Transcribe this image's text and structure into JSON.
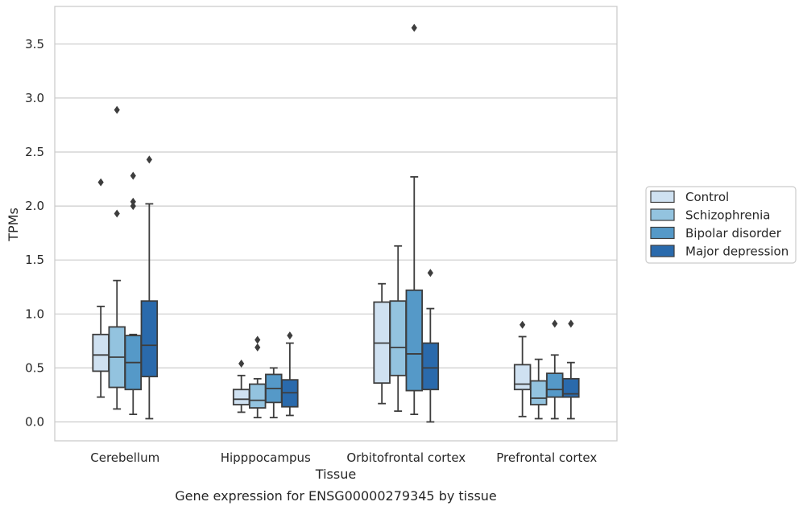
{
  "chart_data": {
    "type": "box",
    "caption": "Gene expression for ENSG00000279345 by tissue",
    "xlabel": "Tissue",
    "ylabel": "TPMs",
    "ylim": [
      -0.18,
      3.85
    ],
    "yticks": [
      "0.0",
      "0.5",
      "1.0",
      "1.5",
      "2.0",
      "2.5",
      "3.0",
      "3.5"
    ],
    "grid": "horizontal",
    "legend_position": "right",
    "categories": [
      "Cerebellum",
      "Hipppocampus",
      "Orbitofrontal cortex",
      "Prefrontal cortex"
    ],
    "series": [
      {
        "name": "Control",
        "color": "#cfe1f1",
        "boxes": [
          {
            "whislo": 0.23,
            "q1": 0.47,
            "med": 0.62,
            "q3": 0.81,
            "whishi": 1.07,
            "fliers": [
              2.22
            ]
          },
          {
            "whislo": 0.09,
            "q1": 0.16,
            "med": 0.21,
            "q3": 0.3,
            "whishi": 0.43,
            "fliers": [
              0.54
            ]
          },
          {
            "whislo": 0.17,
            "q1": 0.36,
            "med": 0.73,
            "q3": 1.11,
            "whishi": 1.28,
            "fliers": []
          },
          {
            "whislo": 0.05,
            "q1": 0.3,
            "med": 0.35,
            "q3": 0.53,
            "whishi": 0.79,
            "fliers": [
              0.9
            ]
          }
        ]
      },
      {
        "name": "Schizophrenia",
        "color": "#93c3df",
        "boxes": [
          {
            "whislo": 0.12,
            "q1": 0.32,
            "med": 0.6,
            "q3": 0.88,
            "whishi": 1.31,
            "fliers": [
              1.93,
              2.89
            ]
          },
          {
            "whislo": 0.04,
            "q1": 0.13,
            "med": 0.2,
            "q3": 0.35,
            "whishi": 0.4,
            "fliers": [
              0.69,
              0.76
            ]
          },
          {
            "whislo": 0.1,
            "q1": 0.43,
            "med": 0.69,
            "q3": 1.12,
            "whishi": 1.63,
            "fliers": []
          },
          {
            "whislo": 0.03,
            "q1": 0.16,
            "med": 0.22,
            "q3": 0.38,
            "whishi": 0.58,
            "fliers": []
          }
        ]
      },
      {
        "name": "Bipolar disorder",
        "color": "#5599c8",
        "boxes": [
          {
            "whislo": 0.07,
            "q1": 0.3,
            "med": 0.55,
            "q3": 0.8,
            "whishi": 0.81,
            "fliers": [
              2.0,
              2.04,
              2.28
            ]
          },
          {
            "whislo": 0.04,
            "q1": 0.18,
            "med": 0.31,
            "q3": 0.44,
            "whishi": 0.5,
            "fliers": []
          },
          {
            "whislo": 0.07,
            "q1": 0.29,
            "med": 0.63,
            "q3": 1.22,
            "whishi": 2.27,
            "fliers": [
              3.65
            ]
          },
          {
            "whislo": 0.03,
            "q1": 0.23,
            "med": 0.3,
            "q3": 0.45,
            "whishi": 0.62,
            "fliers": [
              0.91
            ]
          }
        ]
      },
      {
        "name": "Major depression",
        "color": "#2a6aac",
        "boxes": [
          {
            "whislo": 0.03,
            "q1": 0.42,
            "med": 0.71,
            "q3": 1.12,
            "whishi": 2.02,
            "fliers": [
              2.43
            ]
          },
          {
            "whislo": 0.06,
            "q1": 0.14,
            "med": 0.27,
            "q3": 0.39,
            "whishi": 0.73,
            "fliers": [
              0.8
            ]
          },
          {
            "whislo": 0.0,
            "q1": 0.3,
            "med": 0.5,
            "q3": 0.73,
            "whishi": 1.05,
            "fliers": [
              1.38
            ]
          },
          {
            "whislo": 0.03,
            "q1": 0.23,
            "med": 0.26,
            "q3": 0.4,
            "whishi": 0.55,
            "fliers": [
              0.91
            ]
          }
        ]
      }
    ]
  }
}
